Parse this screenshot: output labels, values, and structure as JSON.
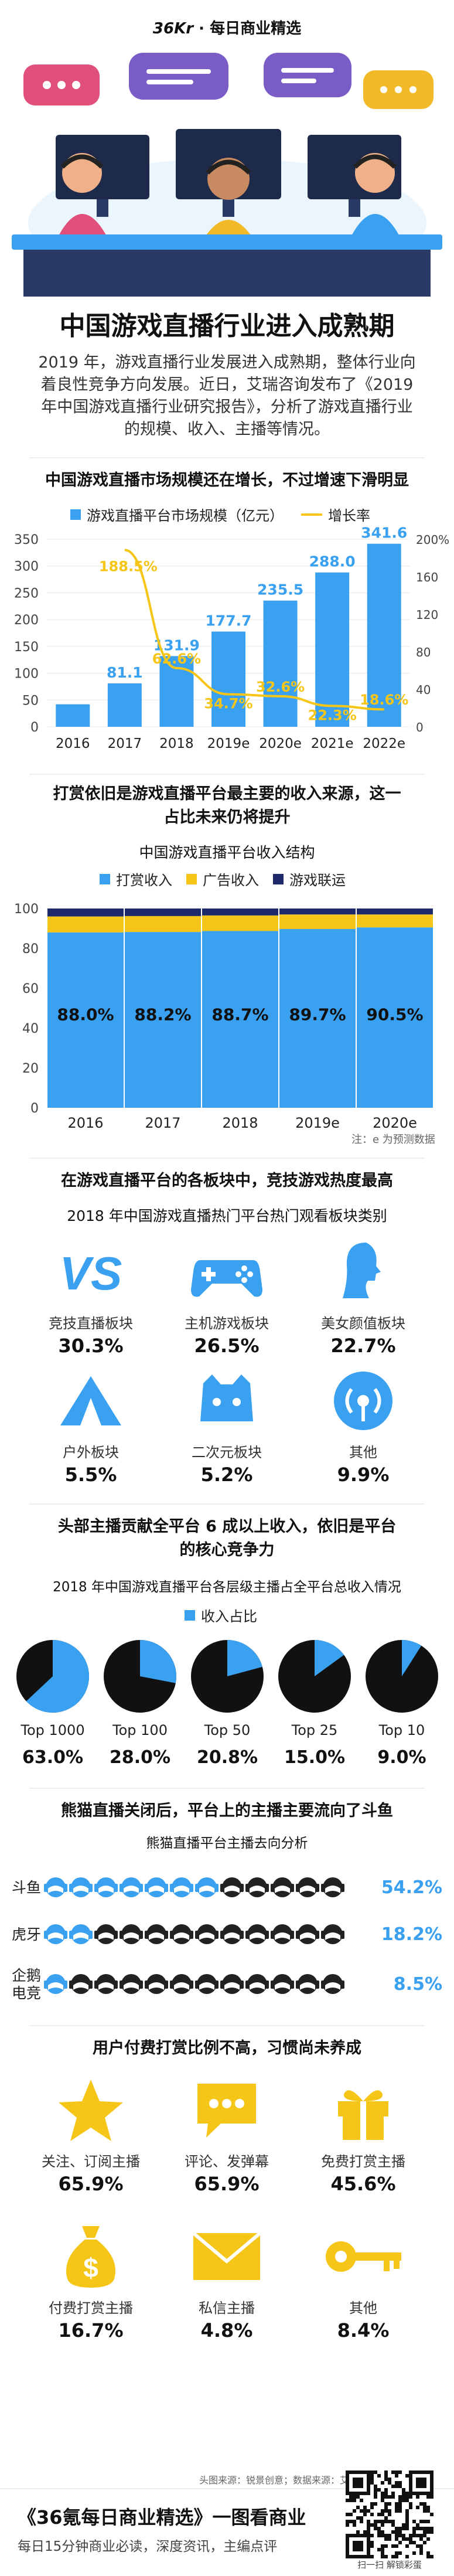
{
  "header": {
    "brand_prefix": "36",
    "brand_k": "Kr",
    "brand_suffix": "· 每日商业精选"
  },
  "title": "中国游戏直播行业进入成熟期",
  "intro": "2019 年，游戏直播行业发展进入成熟期，整体行业向着良性竞争方向发展。近日，艾瑞咨询发布了《2019 年中国游戏直播行业研究报告》，分析了游戏直播行业的规模、收入、主播等情况。",
  "colors": {
    "blue": "#3aa0f0",
    "yellow": "#f5c518",
    "navy": "#1f2a6b",
    "black": "#111111"
  },
  "chart_data": [
    {
      "type": "bar+line",
      "title": "中国游戏直播市场规模还在增长，不过增速下滑明显",
      "categories": [
        "2016",
        "2017",
        "2018",
        "2019e",
        "2020e",
        "2021e",
        "2022e"
      ],
      "series": [
        {
          "name": "游戏直播平台市场规模（亿元）",
          "values": [
            null,
            81.1,
            131.9,
            177.7,
            235.5,
            288.0,
            341.6
          ],
          "value_labels": [
            "",
            "81.1",
            "131.9",
            "177.7",
            "235.5",
            "288.0",
            "341.6"
          ]
        },
        {
          "name": "增长率",
          "values": [
            null,
            188.5,
            62.6,
            34.7,
            32.6,
            22.3,
            18.6
          ],
          "value_labels": [
            "",
            "188.5%",
            "62.6%",
            "34.7%",
            "32.6%",
            "22.3%",
            "18.6%"
          ]
        }
      ],
      "left_ticks": [
        "0",
        "50",
        "100",
        "150",
        "200",
        "250",
        "300",
        "350"
      ],
      "right_ticks": [
        "0",
        "40",
        "80",
        "120",
        "160",
        "200%"
      ],
      "ylim_left": [
        0,
        350
      ],
      "ylim_right": [
        0,
        200
      ],
      "first_bar_value_estimate": 42
    },
    {
      "type": "stacked-bar",
      "section_title": "打赏依旧是游戏直播平台最主要的收入来源，这一占比未来仍将提升",
      "title": "中国游戏直播平台收入结构",
      "categories": [
        "2016",
        "2017",
        "2018",
        "2019e",
        "2020e"
      ],
      "series": [
        {
          "name": "打赏收入",
          "values": [
            88.0,
            88.2,
            88.7,
            89.7,
            90.5
          ],
          "value_labels": [
            "88.0%",
            "88.2%",
            "88.7%",
            "89.7%",
            "90.5%"
          ]
        },
        {
          "name": "广告收入",
          "values": [
            8.0,
            8.0,
            7.8,
            7.3,
            6.5
          ]
        },
        {
          "name": "游戏联运",
          "values": [
            4.0,
            3.8,
            3.5,
            3.0,
            3.0
          ]
        }
      ],
      "ticks": [
        "0",
        "20",
        "40",
        "60",
        "80",
        "100"
      ],
      "ylim": [
        0,
        100
      ],
      "note": "注：e 为预测数据"
    },
    {
      "type": "table",
      "section_title": "在游戏直播平台的各板块中，竞技游戏热度最高",
      "title": "2018 年中国游戏直播热门平台热门观看板块类别",
      "items": [
        {
          "label": "竞技直播板块",
          "value": "30.3%",
          "icon": "vs-icon"
        },
        {
          "label": "主机游戏板块",
          "value": "26.5%",
          "icon": "gamepad-icon"
        },
        {
          "label": "美女颜值板块",
          "value": "22.7%",
          "icon": "woman-profile-icon"
        },
        {
          "label": "户外板块",
          "value": "5.5%",
          "icon": "tent-icon"
        },
        {
          "label": "二次元板块",
          "value": "5.2%",
          "icon": "anime-face-icon"
        },
        {
          "label": "其他",
          "value": "9.9%",
          "icon": "broadcast-icon"
        }
      ]
    },
    {
      "type": "pie",
      "section_title": "头部主播贡献全平台 6 成以上收入，依旧是平台的核心竞争力",
      "title": "2018 年中国游戏直播平台各层级主播占全平台总收入情况",
      "legend": "收入占比",
      "categories": [
        "Top 1000",
        "Top 100",
        "Top 50",
        "Top 25",
        "Top 10"
      ],
      "values": [
        63.0,
        28.0,
        20.8,
        15.0,
        9.0
      ],
      "value_labels": [
        "63.0%",
        "28.0%",
        "20.8%",
        "15.0%",
        "9.0%"
      ]
    },
    {
      "type": "bar",
      "section_title": "熊猫直播关闭后，平台上的主播主要流向了斗鱼",
      "title": "熊猫直播平台主播去向分析",
      "categories": [
        "斗鱼",
        "虎牙",
        "企鹅电竞"
      ],
      "category_lines": [
        [
          "斗鱼"
        ],
        [
          "虎牙"
        ],
        [
          "企鹅",
          "电竞"
        ]
      ],
      "values": [
        54.2,
        18.2,
        8.5
      ],
      "value_labels": [
        "54.2%",
        "18.2%",
        "8.5%"
      ]
    },
    {
      "type": "table",
      "section_title": "用户付费打赏比例不高，习惯尚未养成",
      "items": [
        {
          "label": "关注、订阅主播",
          "value": "65.9%",
          "icon": "star-icon"
        },
        {
          "label": "评论、发弹幕",
          "value": "65.9%",
          "icon": "chat-icon"
        },
        {
          "label": "免费打赏主播",
          "value": "45.6%",
          "icon": "gift-icon"
        },
        {
          "label": "付费打赏主播",
          "value": "16.7%",
          "icon": "money-bag-icon"
        },
        {
          "label": "私信主播",
          "value": "4.8%",
          "icon": "mail-icon"
        },
        {
          "label": "其他",
          "value": "8.4%",
          "icon": "key-icon"
        }
      ]
    }
  ],
  "footer": {
    "source": "头图来源：锐景创意；数据来源：艾瑞咨询",
    "title": "《36氪每日商业精选》一图看商业",
    "subtitle": "每日15分钟商业必读，深度资讯，主编点评",
    "qr_caption": "扫一扫 解锁彩蛋"
  }
}
